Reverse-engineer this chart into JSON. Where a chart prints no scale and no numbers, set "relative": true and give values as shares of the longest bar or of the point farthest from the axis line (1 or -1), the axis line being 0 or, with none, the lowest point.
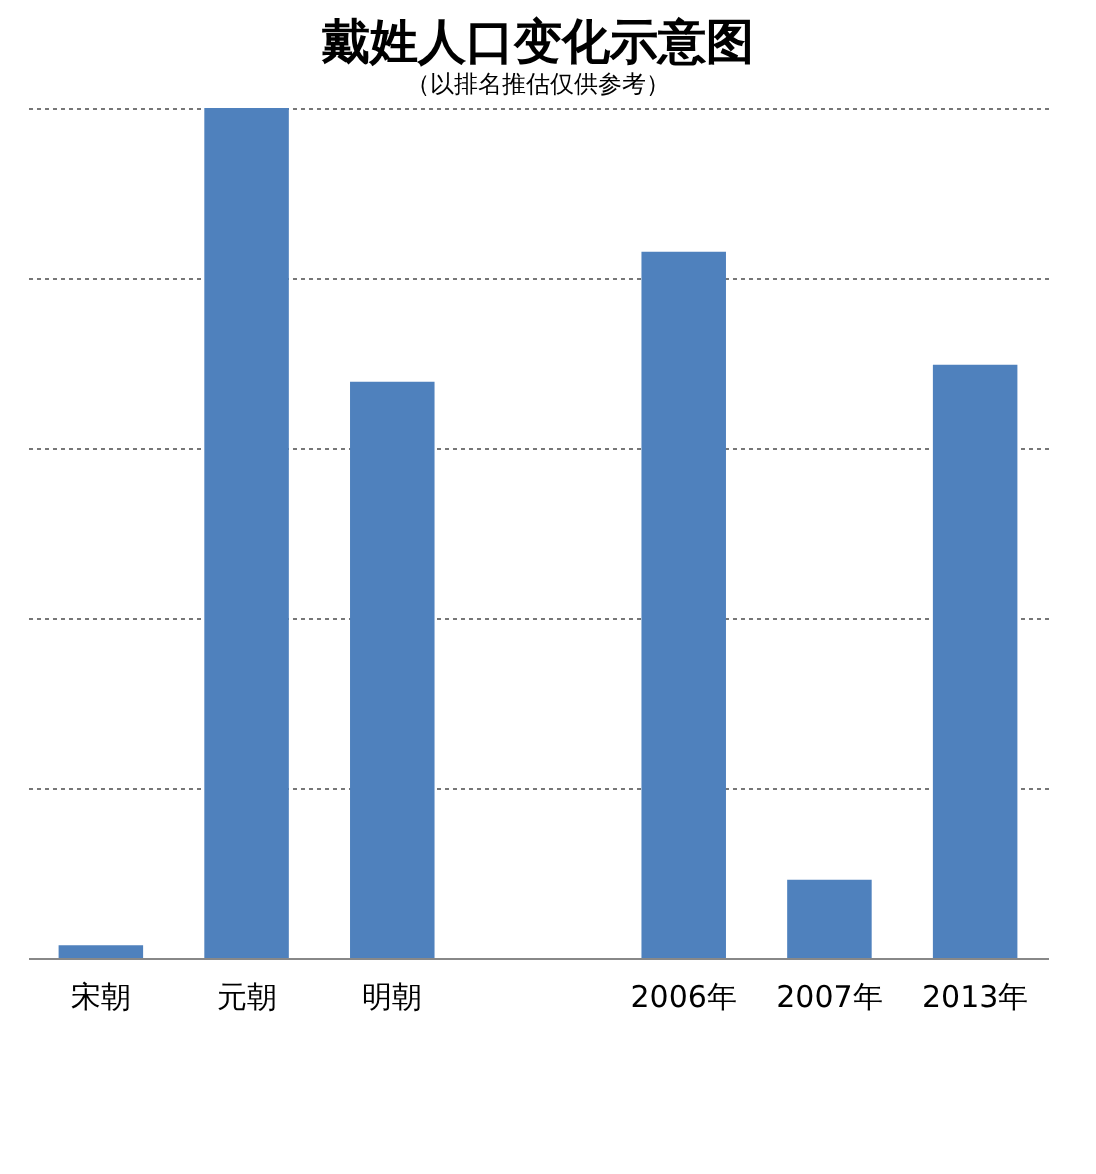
{
  "chart_data": {
    "type": "bar",
    "title": "戴姓人口变化示意图",
    "subtitle": "（以排名推估仅供参考）",
    "categories": [
      "宋朝",
      "元朝",
      "明朝",
      null,
      "2006年",
      "2007年",
      "2013年"
    ],
    "values": [
      0.015,
      1,
      0.678,
      null,
      0.831,
      0.092,
      0.698
    ],
    "color": "#4f81bd",
    "relative": true,
    "grid": "y"
  }
}
